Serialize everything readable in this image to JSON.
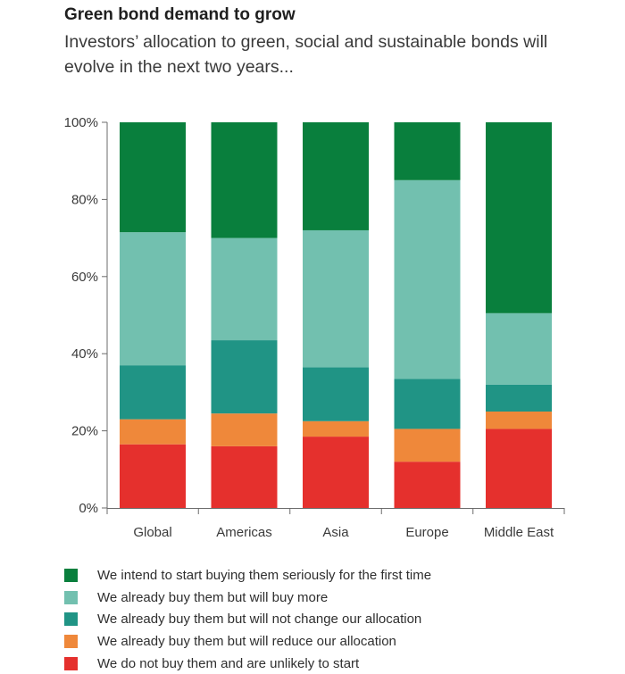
{
  "title": "Green bond demand to grow",
  "subtitle": "Investors’ allocation to green, social and sustainable bonds will evolve in the next two years...",
  "chart_data": {
    "type": "bar",
    "stacked": true,
    "categories": [
      "Global",
      "Americas",
      "Asia",
      "Europe",
      "Middle East"
    ],
    "ylim": [
      0,
      100
    ],
    "yticks": [
      0,
      20,
      40,
      60,
      80,
      100
    ],
    "ytick_labels": [
      "0%",
      "20%",
      "40%",
      "60%",
      "80%",
      "100%"
    ],
    "grid": false,
    "legend_position": "bottom",
    "series": [
      {
        "name": "We do not buy them and are unlikely to start",
        "color": "#e5302d",
        "values": [
          16.5,
          16,
          18.5,
          12,
          20.5
        ]
      },
      {
        "name": "We already buy them but will reduce our allocation",
        "color": "#ef883a",
        "values": [
          6.5,
          8.5,
          4,
          8.5,
          4.5
        ]
      },
      {
        "name": "We already buy them but will not change our allocation",
        "color": "#209485",
        "values": [
          14,
          19,
          14,
          13,
          7
        ]
      },
      {
        "name": "We already buy them but will buy more",
        "color": "#72c0af",
        "values": [
          34.5,
          26.5,
          35.5,
          51.5,
          18.5
        ]
      },
      {
        "name": "We intend to start buying them seriously for the first time",
        "color": "#097f3d",
        "values": [
          28.5,
          30,
          28,
          15,
          49.5
        ]
      }
    ],
    "legend_order": [
      4,
      3,
      2,
      1,
      0
    ]
  }
}
